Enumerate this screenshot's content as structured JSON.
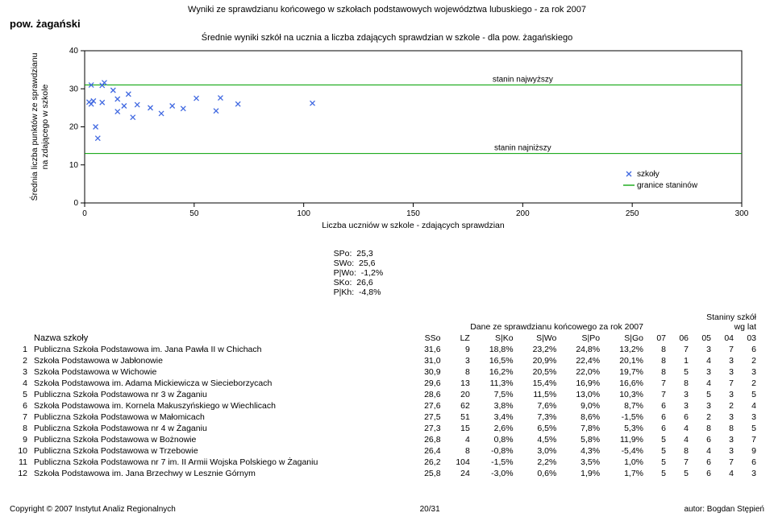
{
  "header": {
    "topline": "Wyniki ze sprawdzianu końcowego w szkołach podstawowych województwa lubuskiego - za rok 2007",
    "pow": "pow. żagański"
  },
  "chart": {
    "type": "scatter",
    "title": "Średnie wyniki szkół na ucznia a liczba zdających sprawdzian w szkole - dla pow. żagańskiego",
    "xlabel": "Liczba uczniów w szkole - zdających sprawdzian",
    "ylabel": "Średnia liczba punktów ze sprawdzianu\nna zdającego w szkole",
    "xlim": [
      0,
      300
    ],
    "ylim": [
      0,
      40
    ],
    "xticks": [
      0,
      50,
      100,
      150,
      200,
      250,
      300
    ],
    "yticks": [
      0,
      10,
      20,
      30,
      40
    ],
    "axis_color": "#000000",
    "tick_color": "#000000",
    "marker_color": "#4169e1",
    "band_line_color": "#00a000",
    "band_upper_y": 31,
    "band_lower_y": 13,
    "anno_upper": "stanin najwyższy",
    "anno_lower": "stanin najniższy",
    "legend_marker": "szkoły",
    "legend_line": "granice staninów",
    "points": [
      {
        "x": 9,
        "y": 31.6
      },
      {
        "x": 3,
        "y": 31.0
      },
      {
        "x": 8,
        "y": 30.9
      },
      {
        "x": 13,
        "y": 29.6
      },
      {
        "x": 20,
        "y": 28.6
      },
      {
        "x": 62,
        "y": 27.6
      },
      {
        "x": 51,
        "y": 27.5
      },
      {
        "x": 15,
        "y": 27.3
      },
      {
        "x": 4,
        "y": 26.8
      },
      {
        "x": 8,
        "y": 26.4
      },
      {
        "x": 104,
        "y": 26.2
      },
      {
        "x": 24,
        "y": 25.8
      },
      {
        "x": 18,
        "y": 25.5
      },
      {
        "x": 30,
        "y": 25.0
      },
      {
        "x": 45,
        "y": 24.8
      },
      {
        "x": 60,
        "y": 24.2
      },
      {
        "x": 35,
        "y": 23.5
      },
      {
        "x": 40,
        "y": 25.5
      },
      {
        "x": 15,
        "y": 24.0
      },
      {
        "x": 5,
        "y": 20.0
      },
      {
        "x": 3,
        "y": 26.0
      },
      {
        "x": 6,
        "y": 17.0
      },
      {
        "x": 22,
        "y": 22.5
      },
      {
        "x": 70,
        "y": 26.0
      },
      {
        "x": 2,
        "y": 26.5
      }
    ]
  },
  "summary": {
    "labels": {
      "spo": "SPo:",
      "swo": "SWo:",
      "pwo": "P|Wo:",
      "sko": "SKo:",
      "pkh": "P|Kh:"
    },
    "values": {
      "spo": "25,3",
      "swo": "25,6",
      "pwo": "-1,2%",
      "sko": "26,6",
      "pkh": "-4,8%"
    }
  },
  "tableHeaders": {
    "school": "Nazwa szkoły",
    "group_dane": "Dane ze sprawdzianu końcowego za rok 2007",
    "group_stan": "Staniny szkół\nwg lat",
    "cols": [
      "SSo",
      "LZ",
      "S|Ko",
      "S|Wo",
      "S|Po",
      "S|Go",
      "07",
      "06",
      "05",
      "04",
      "03"
    ]
  },
  "rows": [
    {
      "idx": "1",
      "name": "Publiczna Szkoła Podstawowa im. Jana Pawła II w Chichach",
      "sso": "31,6",
      "lz": "9",
      "sko": "18,8%",
      "swo": "23,2%",
      "spo": "24,8%",
      "sgo": "13,2%",
      "s07": "8",
      "s06": "7",
      "s05": "3",
      "s04": "7",
      "s03": "6"
    },
    {
      "idx": "2",
      "name": "Szkoła Podstawowa w Jabłonowie",
      "sso": "31,0",
      "lz": "3",
      "sko": "16,5%",
      "swo": "20,9%",
      "spo": "22,4%",
      "sgo": "20,1%",
      "s07": "8",
      "s06": "1",
      "s05": "4",
      "s04": "3",
      "s03": "2"
    },
    {
      "idx": "3",
      "name": "Szkoła Podstawowa w Wichowie",
      "sso": "30,9",
      "lz": "8",
      "sko": "16,2%",
      "swo": "20,5%",
      "spo": "22,0%",
      "sgo": "19,7%",
      "s07": "8",
      "s06": "5",
      "s05": "3",
      "s04": "3",
      "s03": "3"
    },
    {
      "idx": "4",
      "name": "Szkoła Podstawowa im. Adama Mickiewicza w Siecieborzycach",
      "sso": "29,6",
      "lz": "13",
      "sko": "11,3%",
      "swo": "15,4%",
      "spo": "16,9%",
      "sgo": "16,6%",
      "s07": "7",
      "s06": "8",
      "s05": "4",
      "s04": "7",
      "s03": "2"
    },
    {
      "idx": "5",
      "name": "Publiczna Szkoła Podstawowa nr 3 w Żaganiu",
      "sso": "28,6",
      "lz": "20",
      "sko": "7,5%",
      "swo": "11,5%",
      "spo": "13,0%",
      "sgo": "10,3%",
      "s07": "7",
      "s06": "3",
      "s05": "5",
      "s04": "3",
      "s03": "5"
    },
    {
      "idx": "6",
      "name": "Szkoła Podstawowa im. Kornela Makuszyńskiego w Wiechlicach",
      "sso": "27,6",
      "lz": "62",
      "sko": "3,8%",
      "swo": "7,6%",
      "spo": "9,0%",
      "sgo": "8,7%",
      "s07": "6",
      "s06": "3",
      "s05": "3",
      "s04": "2",
      "s03": "4"
    },
    {
      "idx": "7",
      "name": "Publiczna Szkoła Podstawowa w Małomicach",
      "sso": "27,5",
      "lz": "51",
      "sko": "3,4%",
      "swo": "7,3%",
      "spo": "8,6%",
      "sgo": "-1,5%",
      "s07": "6",
      "s06": "6",
      "s05": "2",
      "s04": "3",
      "s03": "3"
    },
    {
      "idx": "8",
      "name": "Publiczna Szkoła Podstawowa nr 4 w Żaganiu",
      "sso": "27,3",
      "lz": "15",
      "sko": "2,6%",
      "swo": "6,5%",
      "spo": "7,8%",
      "sgo": "5,3%",
      "s07": "6",
      "s06": "4",
      "s05": "8",
      "s04": "8",
      "s03": "5"
    },
    {
      "idx": "9",
      "name": "Publiczna Szkoła Podstawowa w Bożnowie",
      "sso": "26,8",
      "lz": "4",
      "sko": "0,8%",
      "swo": "4,5%",
      "spo": "5,8%",
      "sgo": "11,9%",
      "s07": "5",
      "s06": "4",
      "s05": "6",
      "s04": "3",
      "s03": "7"
    },
    {
      "idx": "10",
      "name": "Publiczna Szkoła Podstawowa w Trzebowie",
      "sso": "26,4",
      "lz": "8",
      "sko": "-0,8%",
      "swo": "3,0%",
      "spo": "4,3%",
      "sgo": "-5,4%",
      "s07": "5",
      "s06": "8",
      "s05": "4",
      "s04": "3",
      "s03": "9"
    },
    {
      "idx": "11",
      "name": "Publiczna Szkoła Podstawowa nr 7 im. II Armii Wojska Polskiego w Żaganiu",
      "sso": "26,2",
      "lz": "104",
      "sko": "-1,5%",
      "swo": "2,2%",
      "spo": "3,5%",
      "sgo": "1,0%",
      "s07": "5",
      "s06": "7",
      "s05": "6",
      "s04": "7",
      "s03": "6"
    },
    {
      "idx": "12",
      "name": "Szkoła Podstawowa im. Jana Brzechwy w Lesznie Górnym",
      "sso": "25,8",
      "lz": "24",
      "sko": "-3,0%",
      "swo": "0,6%",
      "spo": "1,9%",
      "sgo": "1,7%",
      "s07": "5",
      "s06": "5",
      "s05": "6",
      "s04": "4",
      "s03": "3"
    }
  ],
  "footer": {
    "left": "Copyright © 2007 Instytut Analiz Regionalnych",
    "center": "20/31",
    "right": "autor: Bogdan Stępień"
  }
}
